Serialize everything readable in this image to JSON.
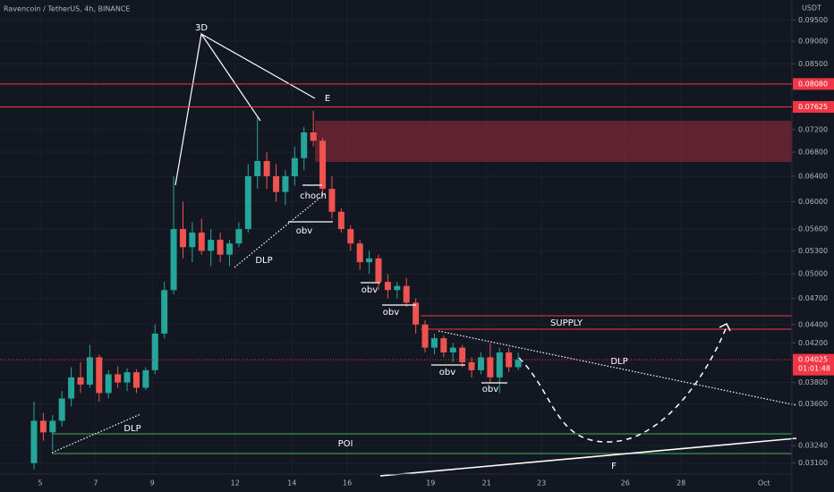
{
  "header": {
    "title": "Ravencoin / TetherUS, 4h, BINANCE",
    "currency": "USDT"
  },
  "chart_data": {
    "type": "candlestick",
    "log_scale": true,
    "grid": true,
    "up_color": "#26a69a",
    "down_color": "#ef5350",
    "xlim": [
      -3.65,
      81.4
    ],
    "xticks": [
      {
        "value": 0.67,
        "label": "5"
      },
      {
        "value": 6.63,
        "label": "7"
      },
      {
        "value": 12.7,
        "label": "9"
      },
      {
        "value": 21.6,
        "label": "12"
      },
      {
        "value": 27.7,
        "label": "14"
      },
      {
        "value": 33.65,
        "label": "16"
      },
      {
        "value": 42.6,
        "label": "19"
      },
      {
        "value": 48.6,
        "label": "21"
      },
      {
        "value": 54.5,
        "label": "23"
      },
      {
        "value": 63.5,
        "label": "26"
      },
      {
        "value": 69.5,
        "label": "28"
      },
      {
        "value": 78.4,
        "label": "Oct"
      }
    ],
    "ylim": [
      0.03015,
      0.0999
    ],
    "yticks": [
      {
        "value": 0.095,
        "label": "0.09500"
      },
      {
        "value": 0.09,
        "label": "0.09000"
      },
      {
        "value": 0.085,
        "label": "0.08500"
      },
      {
        "value": 0.072,
        "label": "0.07200"
      },
      {
        "value": 0.068,
        "label": "0.06800"
      },
      {
        "value": 0.064,
        "label": "0.06400"
      },
      {
        "value": 0.06,
        "label": "0.06000"
      },
      {
        "value": 0.056,
        "label": "0.05600"
      },
      {
        "value": 0.053,
        "label": "0.05300"
      },
      {
        "value": 0.05,
        "label": "0.05000"
      },
      {
        "value": 0.047,
        "label": "0.04700"
      },
      {
        "value": 0.044,
        "label": "0.04400"
      },
      {
        "value": 0.042,
        "label": "0.04200"
      },
      {
        "value": 0.038,
        "label": "0.03800"
      },
      {
        "value": 0.036,
        "label": "0.03600"
      },
      {
        "value": 0.0324,
        "label": "0.03240"
      },
      {
        "value": 0.031,
        "label": "0.03100"
      }
    ],
    "price_labels": [
      {
        "value": 0.0808,
        "label": "0.08080"
      },
      {
        "value": 0.07625,
        "label": "0.07625"
      },
      {
        "value": 0.04025,
        "label": "0.04025",
        "countdown": "01:01:48"
      }
    ],
    "price_label_color": "#f23645",
    "ohlc": [
      [
        0.031,
        0.0362,
        0.0305,
        0.0345
      ],
      [
        0.0345,
        0.0352,
        0.0328,
        0.0335
      ],
      [
        0.0335,
        0.035,
        0.032,
        0.0345
      ],
      [
        0.0345,
        0.0372,
        0.034,
        0.0365
      ],
      [
        0.0365,
        0.0395,
        0.0358,
        0.0385
      ],
      [
        0.0385,
        0.04,
        0.037,
        0.0378
      ],
      [
        0.0378,
        0.0418,
        0.0375,
        0.0405
      ],
      [
        0.0405,
        0.0408,
        0.0362,
        0.037
      ],
      [
        0.037,
        0.0392,
        0.0365,
        0.0388
      ],
      [
        0.0388,
        0.0396,
        0.0375,
        0.038
      ],
      [
        0.038,
        0.0394,
        0.0372,
        0.039
      ],
      [
        0.039,
        0.0393,
        0.037,
        0.0375
      ],
      [
        0.0375,
        0.0395,
        0.0373,
        0.0392
      ],
      [
        0.0392,
        0.044,
        0.0388,
        0.043
      ],
      [
        0.043,
        0.049,
        0.0425,
        0.048
      ],
      [
        0.048,
        0.064,
        0.0475,
        0.056
      ],
      [
        0.056,
        0.06,
        0.052,
        0.0535
      ],
      [
        0.0535,
        0.057,
        0.0515,
        0.0555
      ],
      [
        0.0555,
        0.0575,
        0.0525,
        0.053
      ],
      [
        0.053,
        0.056,
        0.051,
        0.0545
      ],
      [
        0.0545,
        0.0555,
        0.0515,
        0.0525
      ],
      [
        0.0525,
        0.0545,
        0.051,
        0.054
      ],
      [
        0.054,
        0.057,
        0.0535,
        0.056
      ],
      [
        0.056,
        0.066,
        0.0555,
        0.064
      ],
      [
        0.064,
        0.0745,
        0.062,
        0.0665
      ],
      [
        0.0665,
        0.068,
        0.062,
        0.064
      ],
      [
        0.064,
        0.066,
        0.06,
        0.0615
      ],
      [
        0.0615,
        0.065,
        0.0595,
        0.064
      ],
      [
        0.064,
        0.069,
        0.0625,
        0.067
      ],
      [
        0.067,
        0.0725,
        0.065,
        0.0715
      ],
      [
        0.0715,
        0.0755,
        0.069,
        0.07
      ],
      [
        0.07,
        0.0705,
        0.061,
        0.062
      ],
      [
        0.062,
        0.064,
        0.0575,
        0.0585
      ],
      [
        0.0585,
        0.059,
        0.0555,
        0.056
      ],
      [
        0.056,
        0.0565,
        0.053,
        0.054
      ],
      [
        0.054,
        0.0545,
        0.0505,
        0.0515
      ],
      [
        0.0515,
        0.053,
        0.05,
        0.052
      ],
      [
        0.052,
        0.0525,
        0.048,
        0.049
      ],
      [
        0.049,
        0.05,
        0.047,
        0.048
      ],
      [
        0.048,
        0.049,
        0.047,
        0.0485
      ],
      [
        0.0485,
        0.0495,
        0.046,
        0.0465
      ],
      [
        0.0465,
        0.047,
        0.043,
        0.044
      ],
      [
        0.044,
        0.0445,
        0.041,
        0.0415
      ],
      [
        0.0415,
        0.043,
        0.0408,
        0.0425
      ],
      [
        0.0425,
        0.0428,
        0.0405,
        0.041
      ],
      [
        0.041,
        0.042,
        0.04,
        0.0415
      ],
      [
        0.0415,
        0.0418,
        0.0395,
        0.04
      ],
      [
        0.04,
        0.0405,
        0.0385,
        0.0392
      ],
      [
        0.0392,
        0.041,
        0.0388,
        0.0405
      ],
      [
        0.0405,
        0.042,
        0.038,
        0.0385
      ],
      [
        0.0385,
        0.0415,
        0.037,
        0.041
      ],
      [
        0.041,
        0.0415,
        0.039,
        0.0395
      ],
      [
        0.0395,
        0.041,
        0.0392,
        0.04025
      ]
    ],
    "annotations": [
      "3D",
      "E",
      "choch",
      "obv",
      "obv",
      "obv",
      "obv",
      "DLP",
      "DLP",
      "DLP",
      "SUPPLY",
      "POI",
      "F"
    ]
  }
}
